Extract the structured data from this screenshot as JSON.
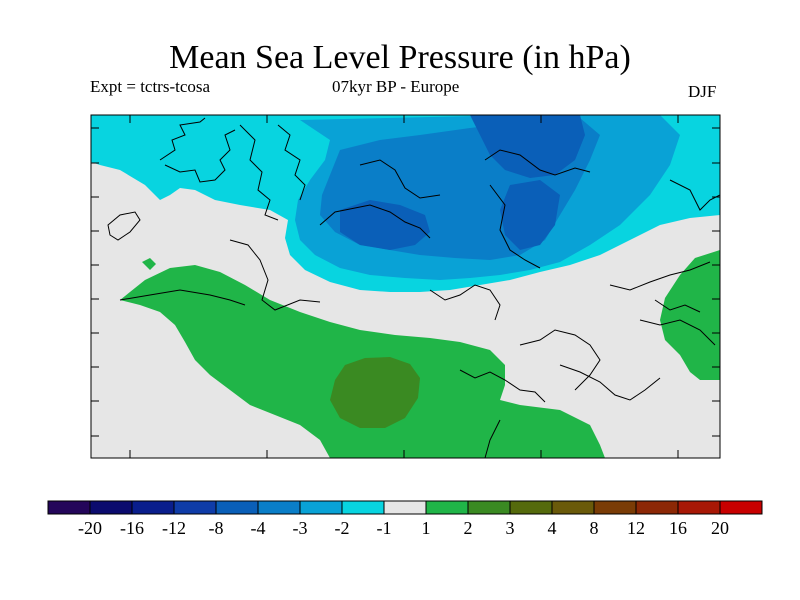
{
  "title": "Mean Sea Level Pressure (in hPa)",
  "experiment": "Expt = tctrs-tcosa",
  "period": "07kyr BP - Europe",
  "season": "DJF",
  "colorbar": {
    "colors": [
      "#24065a",
      "#0b0b6e",
      "#0a1e8c",
      "#0f3ca8",
      "#0a5fb8",
      "#0a7ec8",
      "#09a2d6",
      "#08d4e0",
      "#e6e6e6",
      "#20b548",
      "#3a8a22",
      "#556a0c",
      "#6a5a0a",
      "#7a3c06",
      "#8c2806",
      "#a81806",
      "#c80000"
    ],
    "labels": [
      "-20",
      "-16",
      "-12",
      "-8",
      "-4",
      "-3",
      "-2",
      "-1",
      "1",
      "2",
      "3",
      "4",
      "8",
      "12",
      "16",
      "20"
    ]
  },
  "map_colors": {
    "neutral": "#e6e6e6",
    "neg1": "#08d4e0",
    "neg2": "#09a2d6",
    "neg3": "#0a7ec8",
    "neg4": "#0a5fb8",
    "pos1": "#20b548",
    "pos2": "#3a8a22",
    "coast": "#000000"
  }
}
